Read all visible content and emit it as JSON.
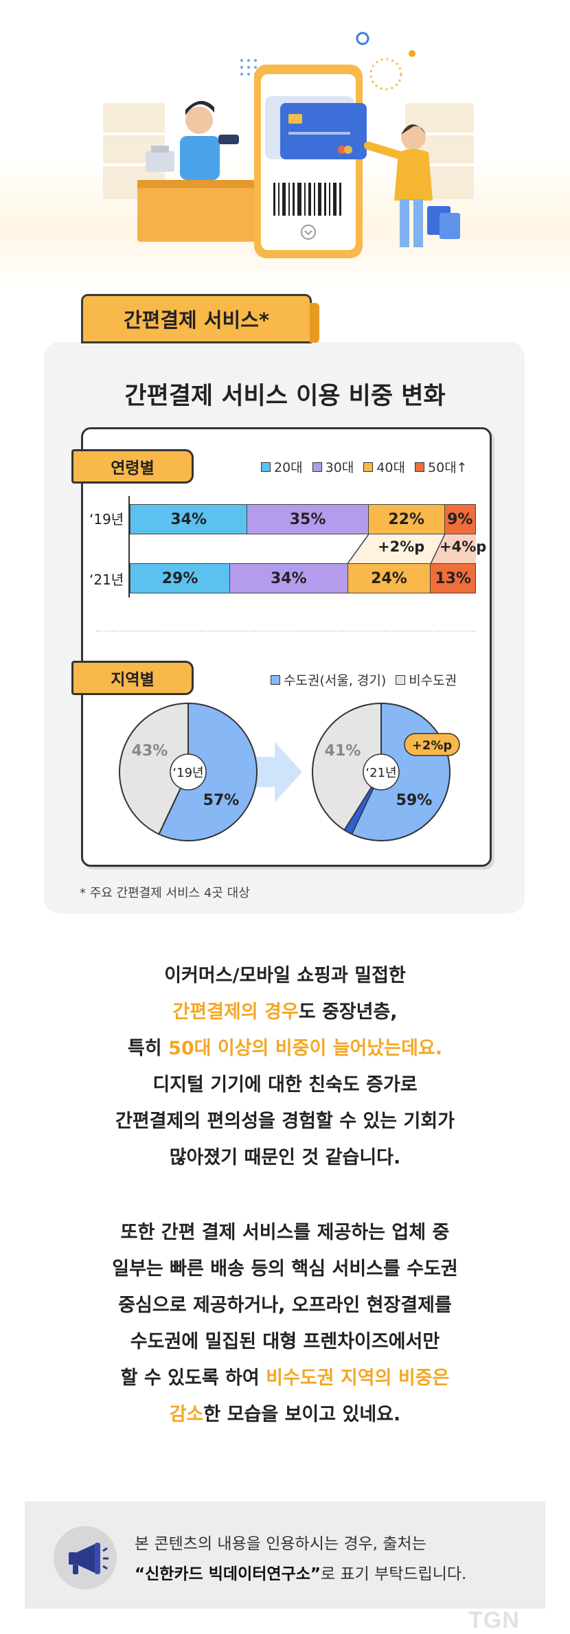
{
  "section_title": "간편결제 서비스*",
  "card_title": "간편결제 서비스 이용 비중 변화",
  "colors": {
    "age_20": "#5bc2f0",
    "age_30": "#b49cec",
    "age_40": "#f8b84a",
    "age_50": "#f06e3a",
    "metro": "#87b7f5",
    "non_metro": "#e5e5e5",
    "accent": "#f5a623"
  },
  "age_section": {
    "label": "연령별",
    "legend": [
      "20대",
      "30대",
      "40대",
      "50대↑"
    ],
    "rows": [
      {
        "year": "‘19년",
        "labels": [
          "34%",
          "35%",
          "22%",
          "9%"
        ]
      },
      {
        "year": "‘21년",
        "labels": [
          "29%",
          "34%",
          "24%",
          "13%"
        ]
      }
    ],
    "changes": [
      "+2%p",
      "+4%p"
    ]
  },
  "region_section": {
    "label": "지역별",
    "legend": [
      "수도권(서울, 경기)",
      "비수도권"
    ],
    "pies": [
      {
        "year": "‘19년",
        "metro_label": "57%",
        "non_metro_label": "43%"
      },
      {
        "year": "‘21년",
        "metro_label": "59%",
        "non_metro_label": "41%",
        "change": "+2%p"
      }
    ]
  },
  "chart_data": [
    {
      "type": "bar",
      "stacked": true,
      "orientation": "horizontal",
      "categories": [
        "‘19년",
        "‘21년"
      ],
      "series": [
        {
          "name": "20대",
          "values": [
            34,
            29
          ]
        },
        {
          "name": "30대",
          "values": [
            35,
            34
          ]
        },
        {
          "name": "40대",
          "values": [
            22,
            24
          ]
        },
        {
          "name": "50대↑",
          "values": [
            9,
            13
          ]
        }
      ],
      "annotations": [
        "+2%p",
        "+4%p"
      ],
      "legend_position": "top-right"
    },
    {
      "type": "pie",
      "title": "‘19년",
      "labels": [
        "수도권(서울, 경기)",
        "비수도권"
      ],
      "values": [
        57,
        43
      ]
    },
    {
      "type": "pie",
      "title": "‘21년",
      "labels": [
        "수도권(서울, 경기)",
        "비수도권"
      ],
      "values": [
        59,
        41
      ],
      "annotations": [
        "+2%p"
      ]
    }
  ],
  "footnote": "* 주요 간편결제 서비스 4곳 대상",
  "paragraph1": [
    [
      {
        "t": "이커머스/모바일 쇼핑과 밀접한",
        "hl": false
      }
    ],
    [
      {
        "t": "간편결제의 경우",
        "hl": true
      },
      {
        "t": "도 중장년층,",
        "hl": false
      }
    ],
    [
      {
        "t": "특히 ",
        "hl": false
      },
      {
        "t": "50대 이상의 비중이 늘어났는데요.",
        "hl": true
      }
    ],
    [
      {
        "t": "디지털 기기에 대한 친숙도 증가로",
        "hl": false
      }
    ],
    [
      {
        "t": "간편결제의 편의성을 경험할 수 있는 기회가",
        "hl": false
      }
    ],
    [
      {
        "t": "많아졌기 때문인 것 같습니다.",
        "hl": false
      }
    ]
  ],
  "paragraph2": [
    [
      {
        "t": "또한 간편 결제 서비스를 제공하는 업체 중",
        "hl": false
      }
    ],
    [
      {
        "t": "일부는 빠른 배송 등의 핵심 서비스를 수도권",
        "hl": false
      }
    ],
    [
      {
        "t": "중심으로 제공하거나, 오프라인 현장결제를",
        "hl": false
      }
    ],
    [
      {
        "t": "수도권에 밀집된 대형 프렌차이즈에서만",
        "hl": false
      }
    ],
    [
      {
        "t": "할 수 있도록 하여 ",
        "hl": false
      },
      {
        "t": "비수도권 지역의 비중은",
        "hl": true
      }
    ],
    [
      {
        "t": "감소",
        "hl": true
      },
      {
        "t": "한 모습을 보이고 있네요.",
        "hl": false
      }
    ]
  ],
  "note": {
    "line1": "본 콘텐츠의 내용을 인용하시는 경우, 출처는",
    "line2_bold": "“신한카드 빅데이터연구소”",
    "line2_rest": "로 표기 부탁드립니다."
  },
  "watermark": "TGN"
}
